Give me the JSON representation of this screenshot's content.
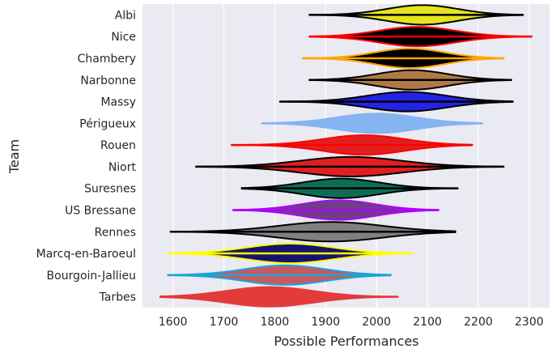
{
  "chart_data": {
    "type": "violin",
    "orientation": "horizontal",
    "xlabel": "Possible Performances",
    "ylabel": "Team",
    "xlim": [
      1540,
      2340
    ],
    "xticks": [
      1600,
      1700,
      1800,
      1900,
      2000,
      2100,
      2200,
      2300
    ],
    "grid": true,
    "background": "#eaeaf2",
    "series": [
      {
        "name": "Albi",
        "fill": "#e4e41e",
        "edge": "#000000",
        "min": 1868,
        "max": 2288,
        "median": 2090,
        "spread": 70
      },
      {
        "name": "Nice",
        "fill": "#000000",
        "edge": "#ff0000",
        "min": 1868,
        "max": 2305,
        "median": 2080,
        "spread": 75
      },
      {
        "name": "Chambery",
        "fill": "#000000",
        "edge": "#ffa500",
        "min": 1855,
        "max": 2250,
        "median": 2065,
        "spread": 68
      },
      {
        "name": "Narbonne",
        "fill": "#b07a48",
        "edge": "#000000",
        "min": 1868,
        "max": 2265,
        "median": 2070,
        "spread": 70
      },
      {
        "name": "Massy",
        "fill": "#2323e3",
        "edge": "#000000",
        "min": 1810,
        "max": 2268,
        "median": 2060,
        "spread": 78
      },
      {
        "name": "Périgueux",
        "fill": "#85b4f0",
        "edge": "#85b4f0",
        "min": 1775,
        "max": 2208,
        "median": 2000,
        "spread": 78
      },
      {
        "name": "Rouen",
        "fill": "#e02020",
        "edge": "#ff0000",
        "min": 1715,
        "max": 2188,
        "median": 1975,
        "spread": 80
      },
      {
        "name": "Niort",
        "fill": "#e02020",
        "edge": "#000000",
        "min": 1645,
        "max": 2250,
        "median": 1950,
        "spread": 100
      },
      {
        "name": "Suresnes",
        "fill": "#0e6e55",
        "edge": "#000000",
        "min": 1735,
        "max": 2160,
        "median": 1930,
        "spread": 75
      },
      {
        "name": "US Bressane",
        "fill": "#6e3e86",
        "edge": "#b000ff",
        "min": 1718,
        "max": 2122,
        "median": 1925,
        "spread": 72
      },
      {
        "name": "Rennes",
        "fill": "#808080",
        "edge": "#000000",
        "min": 1595,
        "max": 2155,
        "median": 1910,
        "spread": 102
      },
      {
        "name": "Marcq-en-Baroeul",
        "fill": "#14146e",
        "edge": "#ffff00",
        "min": 1590,
        "max": 2070,
        "median": 1830,
        "spread": 85
      },
      {
        "name": "Bourgoin-Jallieu",
        "fill": "#c75a60",
        "edge": "#19a5d6",
        "min": 1590,
        "max": 2028,
        "median": 1820,
        "spread": 80
      },
      {
        "name": "Tarbes",
        "fill": "#e33b3b",
        "edge": "#e33b3b",
        "min": 1575,
        "max": 2042,
        "median": 1790,
        "spread": 85
      }
    ]
  }
}
